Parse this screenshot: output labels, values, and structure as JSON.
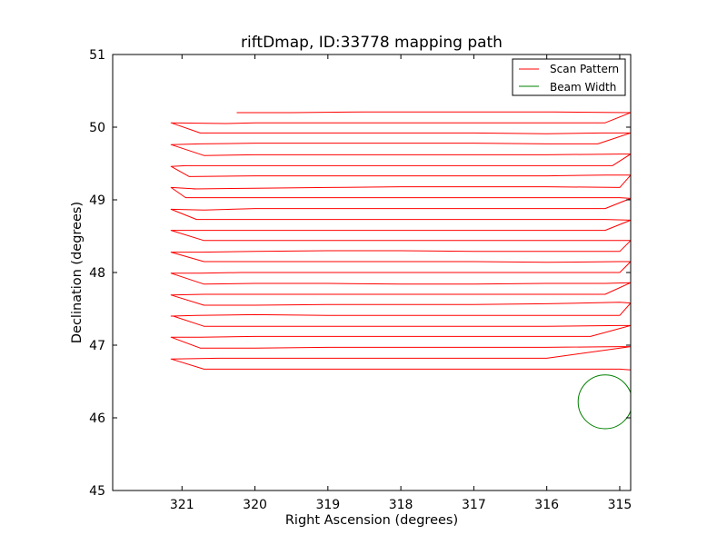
{
  "chart_data": {
    "type": "line",
    "title": "riftDmap, ID:33778 mapping path",
    "xlabel": "Right Ascension (degrees)",
    "ylabel": "Declination (degrees)",
    "xlim": [
      321.95,
      314.85
    ],
    "ylim": [
      45,
      51
    ],
    "x_axis_inverted": true,
    "xticks": [
      321,
      320,
      319,
      318,
      317,
      316,
      315
    ],
    "yticks": [
      45,
      46,
      47,
      48,
      49,
      50,
      51
    ],
    "grid": false,
    "legend": {
      "position": "top-right",
      "entries": [
        "Scan Pattern",
        "Beam Width"
      ]
    },
    "colors": {
      "scan": "#ff0000",
      "beam": "#008000"
    },
    "series": [
      {
        "name": "Scan Pattern",
        "x": [
          320.25,
          319.5,
          318.5,
          317.5,
          316.5,
          315.9,
          314.85,
          315.2,
          316.0,
          317.0,
          318.0,
          319.0,
          320.0,
          320.4,
          321.15,
          320.75,
          320.0,
          319.0,
          318.0,
          317.0,
          316.0,
          315.25,
          314.85,
          315.3,
          316.0,
          317.0,
          318.0,
          319.0,
          320.0,
          320.75,
          321.15,
          320.7,
          320.0,
          319.0,
          318.0,
          317.0,
          316.0,
          315.0,
          314.85,
          315.1,
          316.0,
          317.0,
          318.0,
          319.0,
          320.0,
          320.95,
          321.15,
          320.9,
          320.0,
          319.0,
          318.0,
          317.0,
          316.0,
          315.2,
          314.85,
          315.0,
          316.0,
          317.0,
          318.0,
          319.0,
          320.0,
          320.85,
          320.8,
          321.15,
          320.95,
          320.0,
          319.0,
          318.0,
          317.0,
          316.0,
          315.0,
          314.85,
          315.2,
          316.0,
          317.0,
          318.0,
          319.0,
          320.0,
          320.7,
          321.15,
          320.8,
          320.0,
          319.0,
          318.0,
          317.0,
          316.0,
          315.2,
          314.85,
          315.2,
          316.0,
          317.0,
          318.0,
          319.0,
          320.0,
          320.75,
          321.15,
          320.7,
          320.0,
          319.0,
          318.0,
          317.0,
          316.0,
          315.1,
          314.85,
          315.0,
          316.0,
          317.0,
          318.0,
          319.0,
          320.0,
          320.75,
          321.15,
          320.7,
          320.0,
          319.0,
          318.0,
          317.0,
          316.0,
          315.0,
          314.85,
          315.0,
          316.0,
          317.0,
          318.0,
          319.0,
          320.2,
          320.2,
          320.75,
          321.15,
          320.7,
          320.0,
          319.0,
          318.0,
          317.0,
          316.0,
          315.2,
          314.85,
          315.2,
          316.0,
          317.0,
          318.0,
          319.0,
          320.0,
          320.7,
          321.15,
          320.7,
          320.0,
          319.0,
          318.0,
          317.0,
          316.0,
          315.0,
          314.85,
          315.0,
          316.0,
          317.0,
          318.0,
          319.0,
          320.0,
          320.8,
          321.15,
          321.12,
          320.7,
          320.0,
          319.0,
          318.0,
          317.0,
          316.0,
          315.0,
          314.85,
          315.4,
          316.0,
          317.0,
          318.0,
          319.0,
          320.0,
          320.75,
          321.15,
          320.75,
          320.0,
          319.0,
          318.0,
          317.0,
          316.0,
          315.0,
          314.85,
          316.0,
          317.0,
          318.0,
          319.0,
          320.0,
          320.5,
          321.15,
          320.7,
          320.0,
          319.0,
          318.0,
          317.0,
          316.0,
          315.0,
          314.85
        ],
        "y": [
          50.2,
          50.2,
          50.21,
          50.21,
          50.21,
          50.21,
          50.2,
          50.06,
          50.06,
          50.06,
          50.06,
          50.06,
          50.06,
          50.05,
          50.06,
          49.92,
          49.92,
          49.92,
          49.92,
          49.92,
          49.91,
          49.92,
          49.92,
          49.77,
          49.77,
          49.78,
          49.78,
          49.78,
          49.78,
          49.77,
          49.76,
          49.61,
          49.62,
          49.62,
          49.62,
          49.62,
          49.62,
          49.63,
          49.63,
          49.47,
          49.47,
          49.47,
          49.47,
          49.47,
          49.47,
          49.47,
          49.46,
          49.32,
          49.33,
          49.33,
          49.33,
          49.33,
          49.33,
          49.34,
          49.34,
          49.17,
          49.18,
          49.18,
          49.18,
          49.17,
          49.16,
          49.15,
          49.15,
          49.17,
          49.03,
          49.03,
          49.03,
          49.03,
          49.03,
          49.03,
          49.03,
          49.02,
          48.88,
          48.88,
          48.88,
          48.88,
          48.88,
          48.88,
          48.86,
          48.87,
          48.73,
          48.73,
          48.73,
          48.73,
          48.73,
          48.73,
          48.73,
          48.72,
          48.58,
          48.58,
          48.58,
          48.58,
          48.58,
          48.58,
          48.58,
          48.58,
          48.44,
          48.44,
          48.44,
          48.44,
          48.44,
          48.44,
          48.44,
          48.44,
          48.29,
          48.29,
          48.29,
          48.3,
          48.3,
          48.29,
          48.28,
          48.28,
          48.15,
          48.15,
          48.15,
          48.15,
          48.15,
          48.14,
          48.15,
          48.15,
          48.0,
          48.0,
          48.0,
          48.0,
          48.0,
          48.0,
          48.0,
          47.99,
          47.99,
          47.84,
          47.85,
          47.85,
          47.84,
          47.84,
          47.85,
          47.85,
          47.86,
          47.7,
          47.7,
          47.7,
          47.7,
          47.7,
          47.7,
          47.7,
          47.69,
          47.55,
          47.55,
          47.56,
          47.56,
          47.56,
          47.57,
          47.59,
          47.58,
          47.41,
          47.41,
          47.41,
          47.41,
          47.41,
          47.42,
          47.41,
          47.4,
          47.4,
          47.26,
          47.26,
          47.26,
          47.26,
          47.26,
          47.26,
          47.27,
          47.27,
          47.12,
          47.12,
          47.12,
          47.12,
          47.12,
          47.12,
          47.11,
          47.11,
          46.96,
          46.96,
          46.97,
          46.97,
          46.97,
          46.97,
          46.98,
          46.98,
          46.82,
          46.82,
          46.82,
          46.82,
          46.82,
          46.82,
          46.81,
          46.67,
          46.67,
          46.67,
          46.67,
          46.67,
          46.67,
          46.67,
          46.66
        ]
      },
      {
        "name": "Beam Width",
        "shape": "circle",
        "center": [
          315.2,
          46.22
        ],
        "radius_deg": 0.37
      }
    ]
  }
}
